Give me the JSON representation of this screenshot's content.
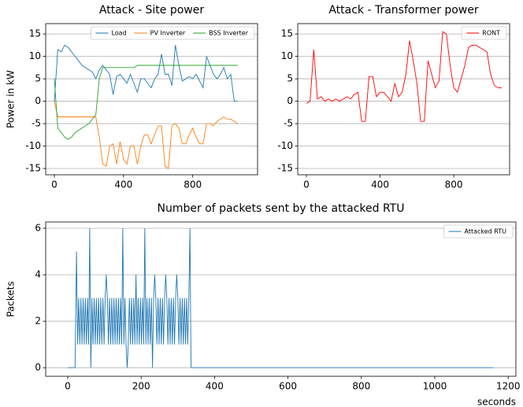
{
  "chart_data": [
    {
      "type": "line",
      "title": "Attack - Site power",
      "ylabel": "Power in kW",
      "x": [
        0,
        20,
        40,
        60,
        80,
        100,
        120,
        140,
        160,
        180,
        200,
        220,
        240,
        260,
        280,
        300,
        320,
        340,
        360,
        380,
        400,
        420,
        440,
        460,
        480,
        500,
        520,
        540,
        560,
        580,
        600,
        620,
        640,
        660,
        680,
        700,
        720,
        740,
        760,
        780,
        800,
        820,
        840,
        860,
        880,
        900,
        920,
        940,
        960,
        980,
        1000,
        1020,
        1040,
        1060
      ],
      "series": [
        {
          "name": "Load",
          "color": "#1f77b4",
          "values": [
            0,
            11.5,
            11,
            12.5,
            12,
            11,
            10,
            9,
            8,
            7.5,
            7,
            6.5,
            5,
            7,
            8,
            7,
            6,
            1.5,
            5.5,
            6,
            5,
            4,
            6,
            4,
            2,
            5,
            5,
            4,
            3,
            5,
            6,
            10.5,
            6,
            6,
            3.5,
            12.5,
            8,
            4.5,
            5,
            5.5,
            5,
            6,
            4.5,
            3,
            10,
            8,
            6,
            5,
            6,
            7.5,
            5,
            6,
            0,
            0
          ]
        },
        {
          "name": "PV Inverter",
          "color": "#ff7f0e",
          "values": [
            0,
            -3.5,
            -3.5,
            -3.5,
            -3.5,
            -3.5,
            -3.5,
            -3.5,
            -3.5,
            -3.5,
            -3.5,
            -3.5,
            -3.5,
            -8,
            -14,
            -14.5,
            -10,
            -9.5,
            -14,
            -9,
            -13,
            -14,
            -10,
            -10,
            -14,
            -10,
            -7.5,
            -7.5,
            -9.5,
            -7.5,
            -5.5,
            -5.5,
            -14.5,
            -15,
            -5.5,
            -5,
            -6,
            -9.5,
            -9.5,
            -7.5,
            -6,
            -8,
            -9.5,
            -9.5,
            -5,
            -5,
            -5.5,
            -4.5,
            -4,
            -3.5,
            -4,
            -4,
            -4.5,
            -5
          ]
        },
        {
          "name": "BSS Inverter",
          "color": "#2ca02c",
          "values": [
            5,
            -6,
            -7,
            -8,
            -8.5,
            -8,
            -7,
            -6.5,
            -6,
            -5.5,
            -5,
            -4,
            -3,
            5,
            7.5,
            7.5,
            7.5,
            7.5,
            7.5,
            7.5,
            7.5,
            7.5,
            7.5,
            7.5,
            8,
            8,
            8,
            8,
            8,
            8,
            8,
            8,
            8,
            8,
            8,
            8,
            8,
            8,
            8,
            8,
            8,
            8,
            8,
            8,
            8,
            8,
            8,
            8,
            8,
            8,
            8,
            8,
            8,
            8
          ]
        }
      ],
      "xlim": [
        -50,
        1175
      ],
      "ylim": [
        -16.4,
        17.3
      ],
      "xticks": [
        0,
        400,
        800
      ],
      "yticks": [
        -15,
        -10,
        -5,
        0,
        5,
        10,
        15
      ],
      "grid": true,
      "legend": "upper right",
      "legend_columns": 3
    },
    {
      "type": "line",
      "title": "Attack - Transformer power",
      "x": [
        0,
        20,
        40,
        60,
        80,
        100,
        120,
        140,
        160,
        180,
        200,
        220,
        240,
        260,
        280,
        300,
        320,
        340,
        360,
        380,
        400,
        420,
        440,
        460,
        480,
        500,
        520,
        540,
        560,
        580,
        600,
        620,
        640,
        660,
        680,
        700,
        720,
        740,
        760,
        780,
        800,
        820,
        840,
        860,
        880,
        900,
        920,
        940,
        960,
        980,
        1000,
        1020,
        1040,
        1060
      ],
      "series": [
        {
          "name": "RONT",
          "color": "#ff0000",
          "values": [
            -0.5,
            0,
            11.5,
            0.5,
            1,
            0,
            0.5,
            0,
            0.5,
            0,
            0.5,
            1,
            0.5,
            1.5,
            2,
            -4.5,
            -4.5,
            5.5,
            5.5,
            1,
            2,
            2,
            1,
            0,
            4,
            1,
            2,
            6,
            13.5,
            9,
            4,
            -4.5,
            -4.5,
            9,
            6,
            3,
            4.5,
            15.5,
            15,
            8,
            3,
            2,
            5,
            8,
            12,
            12.5,
            12.5,
            12,
            11.5,
            11,
            6,
            3.5,
            3,
            3
          ]
        }
      ],
      "xlim": [
        -47,
        1103
      ],
      "ylim": [
        -16.4,
        17.3
      ],
      "xticks": [
        0,
        400,
        800
      ],
      "yticks": [
        -15,
        -10,
        -5,
        0,
        5,
        10,
        15
      ],
      "grid": true,
      "legend": "upper right",
      "legend_columns": 1
    },
    {
      "type": "line",
      "title": "Number of packets sent by the attacked RTU",
      "ylabel": "Packets",
      "xlabel": "seconds",
      "x": [
        0,
        20,
        24,
        27,
        30,
        33,
        36,
        39,
        42,
        45,
        48,
        51,
        54,
        57,
        60,
        63,
        66,
        69,
        72,
        75,
        78,
        81,
        84,
        87,
        90,
        93,
        96,
        99,
        102,
        105,
        108,
        111,
        114,
        117,
        120,
        123,
        126,
        129,
        132,
        135,
        138,
        141,
        144,
        147,
        150,
        153,
        156,
        159,
        162,
        165,
        168,
        171,
        174,
        177,
        180,
        183,
        186,
        189,
        192,
        195,
        198,
        201,
        204,
        207,
        210,
        213,
        216,
        219,
        222,
        225,
        228,
        231,
        234,
        237,
        240,
        243,
        246,
        249,
        252,
        255,
        258,
        261,
        264,
        267,
        270,
        273,
        276,
        279,
        282,
        285,
        288,
        291,
        294,
        297,
        300,
        303,
        306,
        309,
        312,
        315,
        318,
        321,
        324,
        327,
        330,
        333,
        336,
        1160
      ],
      "series": [
        {
          "name": "Attacked RTU",
          "color": "#1f77b4",
          "values": [
            0,
            0,
            5,
            1,
            3,
            1,
            3,
            1,
            3,
            1,
            3,
            1,
            3,
            1,
            6,
            0,
            3,
            1,
            3,
            1,
            3,
            1,
            3,
            1,
            3,
            1,
            3,
            1,
            3,
            4,
            3,
            1,
            3,
            1,
            3,
            1,
            3,
            1,
            3,
            1,
            3,
            1,
            3,
            1,
            6,
            1,
            3,
            1,
            0,
            1,
            3,
            1,
            3,
            1,
            3,
            1,
            4,
            1,
            3,
            1,
            3,
            1,
            3,
            1,
            6,
            1,
            3,
            1,
            3,
            1,
            3,
            0,
            3,
            4,
            3,
            1,
            3,
            1,
            3,
            1,
            3,
            1,
            3,
            4,
            3,
            1,
            3,
            1,
            3,
            1,
            3,
            1,
            3,
            4,
            3,
            1,
            3,
            1,
            3,
            1,
            3,
            1,
            3,
            1,
            3,
            6,
            0,
            0
          ]
        }
      ],
      "xlim": [
        -60,
        1221
      ],
      "ylim": [
        -0.37,
        6.27
      ],
      "xticks": [
        0,
        200,
        400,
        600,
        800,
        1000,
        1200
      ],
      "yticks": [
        0,
        2,
        4,
        6
      ],
      "grid": true,
      "legend": "upper right",
      "legend_columns": 1
    }
  ]
}
